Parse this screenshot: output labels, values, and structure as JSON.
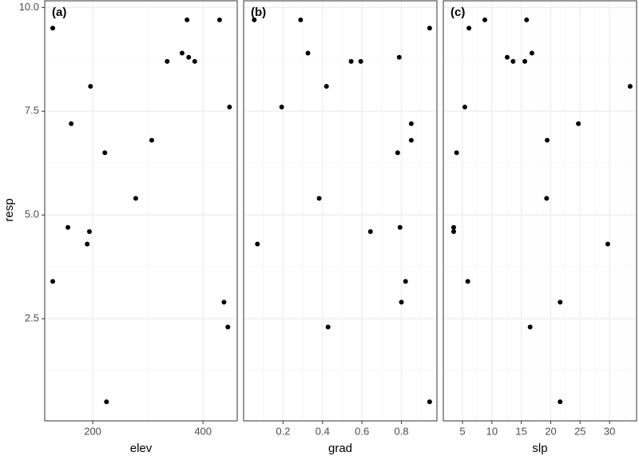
{
  "chart_data": [
    {
      "type": "scatter",
      "title": "(a)",
      "xlabel": "elev",
      "ylabel": "resp",
      "color": "#000000",
      "xlim": [
        113,
        462
      ],
      "xticks": [
        200,
        400
      ],
      "ylim": [
        0.04,
        10.16
      ],
      "yticks": [
        {
          "value": 2.5,
          "label": "2.5"
        },
        {
          "value": 5,
          "label": "5.0"
        },
        {
          "value": 7.5,
          "label": "7.5"
        },
        {
          "value": 10,
          "label": "10.0"
        }
      ],
      "grid": true,
      "x": [
        127.5,
        127.5,
        371,
        430,
        362,
        374,
        335,
        385,
        196,
        448,
        161,
        307,
        222,
        278,
        155,
        194,
        190,
        438,
        445,
        225
      ],
      "values": [
        9.5,
        3.4,
        9.7,
        9.7,
        8.9,
        8.8,
        8.7,
        8.7,
        8.1,
        7.6,
        7.2,
        6.8,
        6.5,
        5.4,
        4.7,
        4.6,
        4.3,
        2.9,
        2.3,
        0.5
      ]
    },
    {
      "type": "scatter",
      "title": "(b)",
      "xlabel": "grad",
      "color": "#000000",
      "xlim": [
        0.0,
        0.98
      ],
      "xticks": [
        0.2,
        0.4,
        0.6,
        0.8
      ],
      "ylim": [
        0.04,
        10.16
      ],
      "yticks": [
        2.5,
        5,
        7.5,
        10
      ],
      "grid": true,
      "x": [
        0.054,
        0.289,
        0.326,
        0.943,
        0.545,
        0.594,
        0.789,
        0.42,
        0.193,
        0.85,
        0.85,
        0.781,
        0.383,
        0.793,
        0.643,
        0.07,
        0.821,
        0.8,
        0.428,
        0.943
      ],
      "values": [
        9.7,
        9.7,
        8.9,
        9.5,
        8.7,
        8.7,
        8.8,
        8.1,
        7.6,
        7.2,
        6.8,
        6.5,
        5.4,
        4.7,
        4.6,
        4.3,
        3.4,
        2.9,
        2.3,
        0.5
      ]
    },
    {
      "type": "scatter",
      "title": "(c)",
      "xlabel": "slp",
      "color": "#000000",
      "xlim": [
        1.74,
        34.6
      ],
      "xticks": [
        5,
        10,
        15,
        20,
        25,
        30
      ],
      "ylim": [
        0.04,
        10.16
      ],
      "yticks": [
        2.5,
        5,
        7.5,
        10
      ],
      "grid": true,
      "x": [
        6.1,
        8.8,
        15.9,
        12.6,
        13.6,
        15.6,
        16.8,
        33.5,
        5.4,
        24.7,
        19.4,
        4.0,
        19.3,
        3.5,
        3.5,
        29.7,
        5.9,
        21.6,
        16.5,
        21.6
      ],
      "values": [
        9.5,
        9.7,
        9.7,
        8.8,
        8.7,
        8.7,
        8.9,
        8.1,
        7.6,
        7.2,
        6.8,
        6.5,
        5.4,
        4.7,
        4.6,
        4.3,
        3.4,
        2.9,
        2.3,
        0.5
      ]
    }
  ]
}
